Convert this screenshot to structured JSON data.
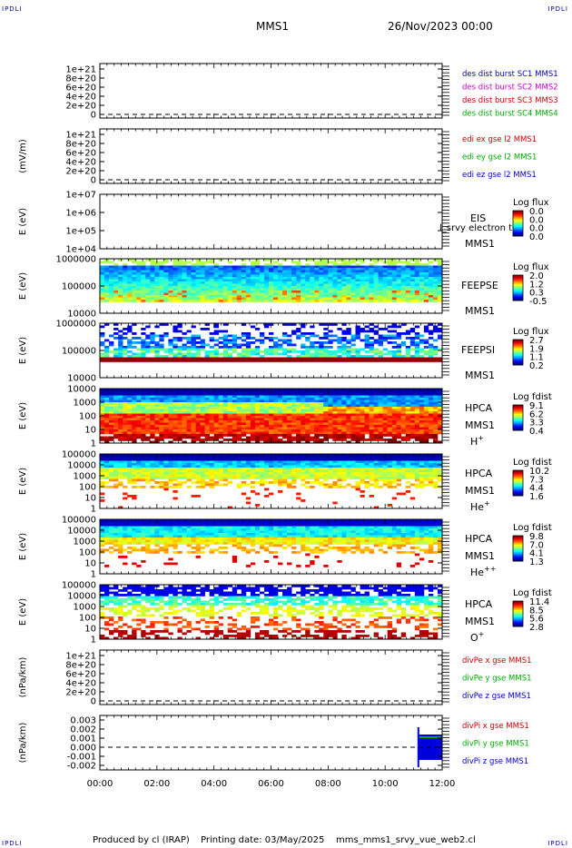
{
  "header": {
    "corner_label": "IPDLI",
    "mission": "MMS1",
    "date_time": "26/Nov/2023 00:00"
  },
  "footer": {
    "produced_by": "Produced by cl (IRAP)",
    "printing_date": "Printing date: 03/May/2025",
    "script_name": "mms_mms1_srvy_vue_web2.cl"
  },
  "time_axis": {
    "ticks": [
      "00:00",
      "02:00",
      "04:00",
      "06:00",
      "08:00",
      "10:00",
      "12:00"
    ]
  },
  "chart_data": [
    {
      "type": "line",
      "panel": "des-dist-burst",
      "ylabel": "",
      "yticks": [
        "0",
        "2e+20",
        "4e+20",
        "6e+20",
        "8e+20",
        "1e+21"
      ],
      "dashed_zero": true,
      "legend": [
        {
          "label": "des dist burst SC1 MMS1",
          "color": "#0000cc"
        },
        {
          "label": "des dist burst SC2 MMS2",
          "color": "#cc00cc"
        },
        {
          "label": "des dist burst SC3 MMS3",
          "color": "#cc0000"
        },
        {
          "label": "des dist burst SC4 MMS4",
          "color": "#00aa00"
        }
      ]
    },
    {
      "type": "line",
      "panel": "edi-e-gse",
      "ylabel": "(mV/m)",
      "yticks": [
        "0",
        "2e+20",
        "4e+20",
        "6e+20",
        "8e+20",
        "1e+21"
      ],
      "dashed_zero": true,
      "legend": [
        {
          "label": "edi ex gse l2 MMS1",
          "color": "#cc0000"
        },
        {
          "label": "edi ey gse l2 MMS1",
          "color": "#00aa00"
        },
        {
          "label": "edi ez gse l2 MMS1",
          "color": "#0000cc"
        }
      ]
    },
    {
      "type": "heatmap",
      "panel": "eis",
      "ylabel": "E (eV)",
      "yticks": [
        "1e+04",
        "1e+05",
        "1e+06",
        "1e+07"
      ],
      "labels": [
        "EIS",
        "MMS1"
      ],
      "overlay_text": "l_srvy electron to",
      "colorbar": {
        "title": "Log flux",
        "ticks": [
          "0.0",
          "0.0",
          "0.0",
          "0.0"
        ]
      },
      "fill": "empty"
    },
    {
      "type": "heatmap",
      "panel": "feeps-e",
      "ylabel": "E (eV)",
      "yticks": [
        "10000",
        "100000",
        "1000000"
      ],
      "labels": [
        "FEEPSE",
        "MMS1"
      ],
      "colorbar": {
        "title": "Log flux",
        "ticks": [
          "2.0",
          "1.2",
          "0.3",
          "-0.5"
        ]
      },
      "fill": "feepse"
    },
    {
      "type": "heatmap",
      "panel": "feeps-i",
      "ylabel": "E (eV)",
      "yticks": [
        "10000",
        "100000",
        "1000000"
      ],
      "labels": [
        "FEEPSI",
        "MMS1"
      ],
      "colorbar": {
        "title": "Log flux",
        "ticks": [
          "2.7",
          "1.9",
          "1.1",
          "0.2"
        ]
      },
      "fill": "feepsi"
    },
    {
      "type": "heatmap",
      "panel": "hpca-h",
      "ylabel": "E (eV)",
      "yticks": [
        "1",
        "10",
        "100",
        "1000",
        "10000"
      ],
      "labels": [
        "HPCA",
        "MMS1",
        "H+"
      ],
      "colorbar": {
        "title": "Log fdist",
        "ticks": [
          "9.1",
          "6.2",
          "3.3",
          "0.4"
        ]
      },
      "fill": "hplus"
    },
    {
      "type": "heatmap",
      "panel": "hpca-he",
      "ylabel": "E (eV)",
      "yticks": [
        "1",
        "10",
        "100",
        "1000",
        "10000",
        "100000"
      ],
      "labels": [
        "HPCA",
        "MMS1",
        "He+"
      ],
      "colorbar": {
        "title": "Log fdist",
        "ticks": [
          "10.2",
          "7.3",
          "4.4",
          "1.6"
        ]
      },
      "fill": "heplus"
    },
    {
      "type": "heatmap",
      "panel": "hpca-hepp",
      "ylabel": "E (eV)",
      "yticks": [
        "1",
        "10",
        "100",
        "1000",
        "10000",
        "100000"
      ],
      "labels": [
        "HPCA",
        "MMS1",
        "He++"
      ],
      "colorbar": {
        "title": "Log fdist",
        "ticks": [
          "9.8",
          "7.0",
          "4.1",
          "1.3"
        ]
      },
      "fill": "hepp"
    },
    {
      "type": "heatmap",
      "panel": "hpca-o",
      "ylabel": "E (eV)",
      "yticks": [
        "1",
        "10",
        "100",
        "1000",
        "10000",
        "100000"
      ],
      "labels": [
        "HPCA",
        "MMS1",
        "O+"
      ],
      "colorbar": {
        "title": "Log fdist",
        "ticks": [
          "11.4",
          "8.5",
          "5.6",
          "2.8"
        ]
      },
      "fill": "oplus"
    },
    {
      "type": "line",
      "panel": "divpe",
      "ylabel": "(nPa/km)",
      "yticks": [
        "0",
        "2e+20",
        "4e+20",
        "6e+20",
        "8e+20",
        "1e+21"
      ],
      "dashed_zero": true,
      "legend": [
        {
          "label": "divPe x gse MMS1",
          "color": "#cc0000"
        },
        {
          "label": "divPe y gse MMS1",
          "color": "#00aa00"
        },
        {
          "label": "divPe z gse MMS1",
          "color": "#0000cc"
        }
      ]
    },
    {
      "type": "line",
      "panel": "divpi",
      "ylabel": "(nPa/km)",
      "yticks": [
        "-0.002",
        "-0.001",
        "0.000",
        "0.001",
        "0.002",
        "0.003"
      ],
      "ylim": [
        -0.0025,
        0.0035
      ],
      "dashed_zero": true,
      "legend": [
        {
          "label": "divPi x gse MMS1",
          "color": "#cc0000"
        },
        {
          "label": "divPi y gse MMS1",
          "color": "#00aa00"
        },
        {
          "label": "divPi z gse MMS1",
          "color": "#0000cc"
        }
      ],
      "data_window": {
        "start": "11:10",
        "end": "12:00"
      }
    }
  ]
}
